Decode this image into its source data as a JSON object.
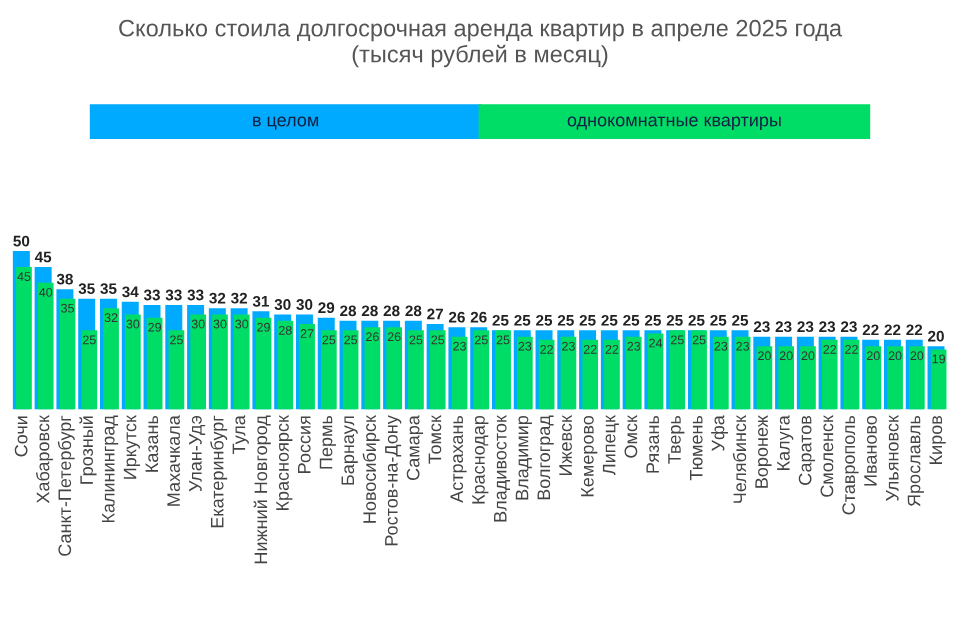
{
  "chart_data": {
    "type": "bar",
    "title": "Сколько стоила долгосрочная аренда квартир в апреле 2025 года\n(тысяч рублей в месяц)",
    "categories": [
      "Сочи",
      "Хабаровск",
      "Санкт-Петербург",
      "Грозный",
      "Калининград",
      "Иркутск",
      "Казань",
      "Махачкала",
      "Улан-Удэ",
      "Екатеринбург",
      "Тула",
      "Нижний Новгород",
      "Красноярск",
      "Россия",
      "Пермь",
      "Барнаул",
      "Новосибирск",
      "Ростов-на-Дону",
      "Самара",
      "Томск",
      "Астрахань",
      "Краснодар",
      "Владивосток",
      "Владимир",
      "Волгоград",
      "Ижевск",
      "Кемерово",
      "Липецк",
      "Омск",
      "Рязань",
      "Тверь",
      "Тюмень",
      "Уфа",
      "Челябинск",
      "Воронеж",
      "Калуга",
      "Саратов",
      "Смоленск",
      "Ставрополь",
      "Иваново",
      "Ульяновск",
      "Ярославль",
      "Киров"
    ],
    "series": [
      {
        "name": "в целом",
        "color": "#00aaff",
        "values": [
          50,
          45,
          38,
          35,
          35,
          34,
          33,
          33,
          33,
          32,
          32,
          31,
          30,
          30,
          29,
          28,
          28,
          28,
          28,
          27,
          26,
          26,
          25,
          25,
          25,
          25,
          25,
          25,
          25,
          25,
          25,
          25,
          25,
          25,
          23,
          23,
          23,
          23,
          23,
          22,
          22,
          22,
          20
        ]
      },
      {
        "name": "однокомнатные квартиры",
        "color": "#00dd66",
        "values": [
          45,
          40,
          35,
          25,
          32,
          30,
          29,
          25,
          30,
          30,
          30,
          29,
          28,
          27,
          25,
          25,
          26,
          26,
          25,
          25,
          23,
          25,
          25,
          23,
          22,
          23,
          22,
          22,
          23,
          24,
          25,
          25,
          23,
          23,
          20,
          20,
          20,
          22,
          22,
          20,
          20,
          20,
          19
        ]
      }
    ],
    "data_labels": true,
    "legend": "top",
    "grid": false
  }
}
